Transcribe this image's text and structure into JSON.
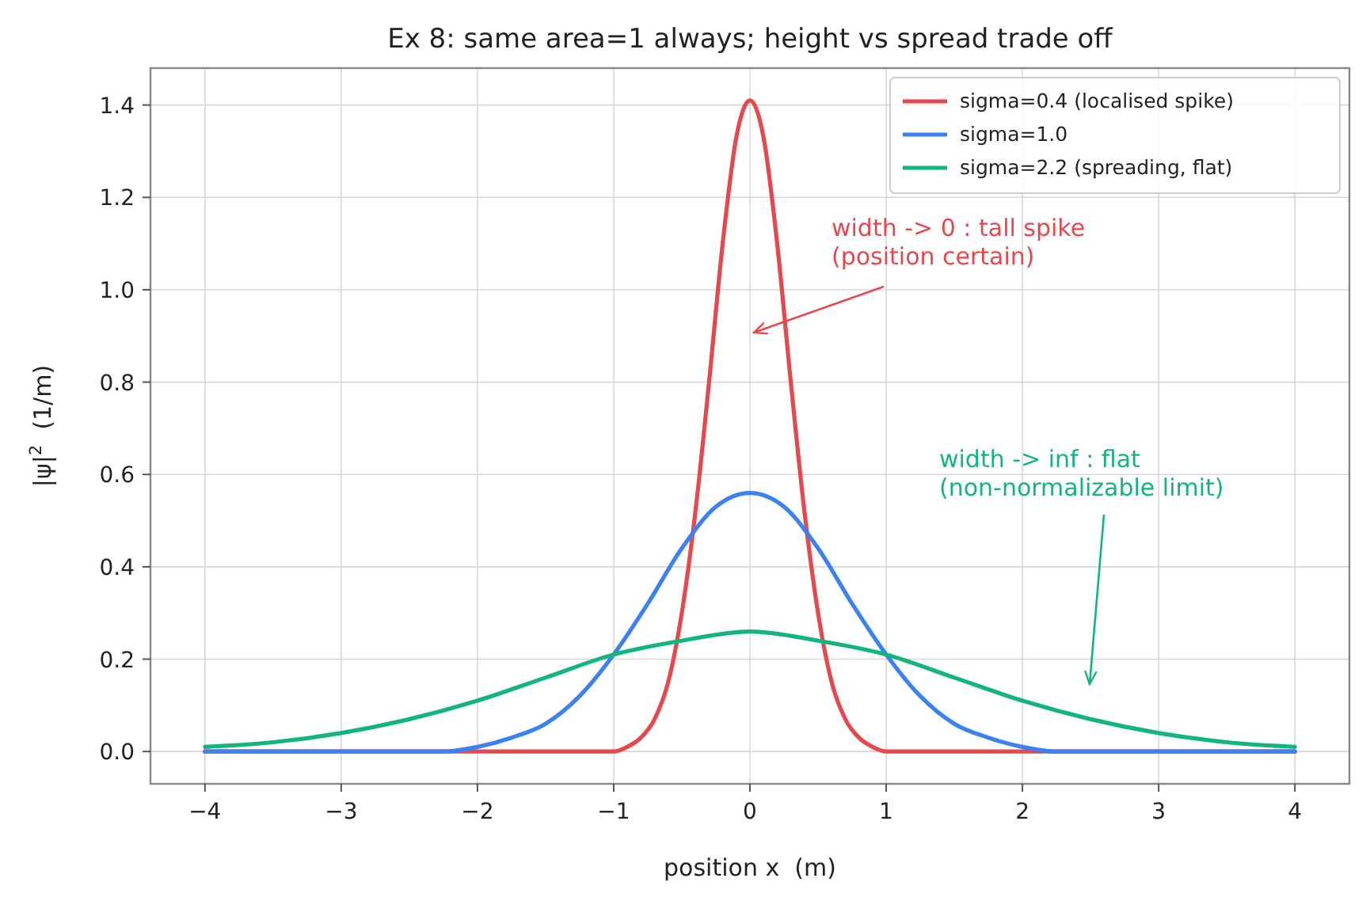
{
  "chart_data": {
    "type": "line",
    "title": "Ex 8: same area=1 always; height vs spread trade off",
    "xlabel": "position x  (m)",
    "ylabel": "|ψ|$^{2}$  (1/m)",
    "xlim": [
      -4.4,
      4.4
    ],
    "ylim": [
      -0.07,
      1.48
    ],
    "xticks": [
      {
        "value": -4,
        "label": "−4"
      },
      {
        "value": -3,
        "label": "−3"
      },
      {
        "value": -2,
        "label": "−2"
      },
      {
        "value": -1,
        "label": "−1"
      },
      0,
      1,
      2,
      3,
      4
    ],
    "yticks": [
      {
        "value": 0,
        "label": "0.0"
      },
      0.2,
      0.4,
      0.6,
      0.8,
      {
        "value": 1,
        "label": "1.0"
      },
      1.2,
      1.4
    ],
    "grid": true,
    "legend": "top right",
    "line_style": "solid",
    "marker": "none",
    "series": [
      {
        "name": "sigma=0.4 (localised spike)",
        "color": "#e5484d",
        "x": [
          -4,
          -3,
          -2,
          -1.5,
          -1.2,
          -1,
          -0.9,
          -0.8,
          -0.7,
          -0.6,
          -0.5,
          -0.4,
          -0.3,
          -0.2,
          -0.1,
          0,
          0.1,
          0.2,
          0.3,
          0.4,
          0.5,
          0.6,
          0.7,
          0.8,
          0.9,
          1,
          1.2,
          1.5,
          2,
          3,
          4
        ],
        "values": [
          0,
          0,
          0,
          0,
          0,
          0,
          0.01,
          0.03,
          0.07,
          0.15,
          0.3,
          0.52,
          0.8,
          1.1,
          1.33,
          1.41,
          1.33,
          1.1,
          0.8,
          0.52,
          0.3,
          0.15,
          0.07,
          0.03,
          0.01,
          0,
          0,
          0,
          0,
          0,
          0
        ]
      },
      {
        "name": "sigma=1.0",
        "color": "#3b82f0",
        "x": [
          -4,
          -3,
          -2.5,
          -2.25,
          -2,
          -1.75,
          -1.5,
          -1.25,
          -1,
          -0.75,
          -0.5,
          -0.25,
          0,
          0.25,
          0.5,
          0.75,
          1,
          1.25,
          1.5,
          1.75,
          2,
          2.25,
          2.5,
          3,
          4
        ],
        "values": [
          0,
          0,
          0,
          0,
          0.01,
          0.03,
          0.06,
          0.12,
          0.21,
          0.32,
          0.44,
          0.53,
          0.56,
          0.53,
          0.44,
          0.32,
          0.21,
          0.12,
          0.06,
          0.03,
          0.01,
          0,
          0,
          0,
          0
        ]
      },
      {
        "name": "sigma=2.2 (spreading, flat)",
        "color": "#13b57e",
        "x": [
          -4,
          -3.5,
          -3,
          -2.5,
          -2,
          -1.5,
          -1,
          -0.5,
          0,
          0.5,
          1,
          1.5,
          2,
          2.5,
          3,
          3.5,
          4
        ],
        "values": [
          0.01,
          0.02,
          0.04,
          0.07,
          0.11,
          0.16,
          0.21,
          0.24,
          0.26,
          0.24,
          0.21,
          0.16,
          0.11,
          0.07,
          0.04,
          0.02,
          0.01
        ]
      }
    ],
    "annotations": [
      "width -> 0 : tall spike\n(position certain)",
      "width -> inf : flat\n(non-normalizable limit)"
    ]
  }
}
